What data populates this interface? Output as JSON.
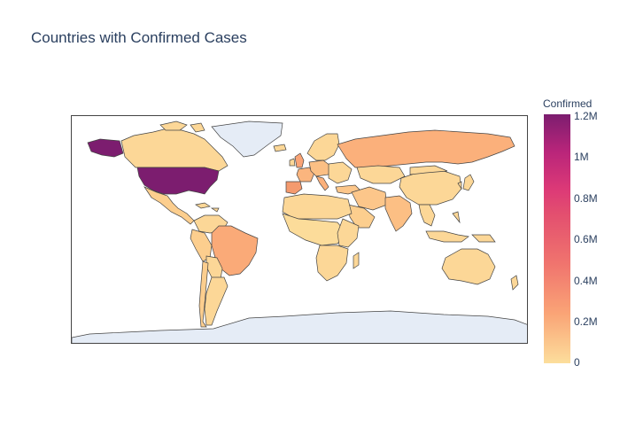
{
  "title": "Countries with Confirmed Cases",
  "colorbar": {
    "title": "Confirmed",
    "ticks": [
      "1.2M",
      "1M",
      "0.8M",
      "0.6M",
      "0.4M",
      "0.2M",
      "0"
    ]
  },
  "map": {
    "projection": "equirectangular",
    "land_no_data_color": "#e5ecf6",
    "border_color": "#444444",
    "colorscale": [
      "#fcde9c",
      "#faa476",
      "#f0746e",
      "#e34f6f",
      "#dc3977",
      "#b9257a",
      "#7c1d6f"
    ],
    "highlighted": [
      {
        "name": "United States",
        "level": "highest"
      },
      {
        "name": "Russia",
        "level": "mid-low"
      },
      {
        "name": "Brazil",
        "level": "mid-low"
      },
      {
        "name": "Spain",
        "level": "mid"
      },
      {
        "name": "Italy",
        "level": "mid-low"
      },
      {
        "name": "United Kingdom",
        "level": "mid-low"
      }
    ]
  }
}
